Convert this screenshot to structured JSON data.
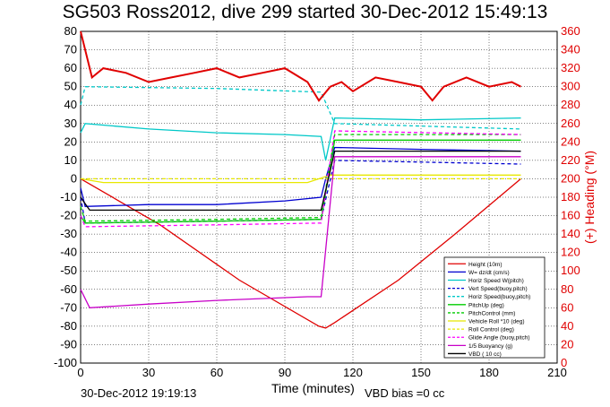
{
  "chart_data": {
    "type": "line",
    "title": "SG503 Ross2012, dive 299 started 30-Dec-2012 15:49:13",
    "xlabel": "Time (minutes)",
    "ylabel_right": "(+) Heading (°M)",
    "xlim": [
      0,
      210
    ],
    "ylim": [
      -100,
      80
    ],
    "ylim_right": [
      0,
      360
    ],
    "x_ticks": [
      "0",
      "30",
      "60",
      "90",
      "120",
      "150",
      "180",
      "210"
    ],
    "y_ticks": [
      "80",
      "70",
      "60",
      "50",
      "40",
      "30",
      "20",
      "10",
      "0",
      "-10",
      "-20",
      "-30",
      "-40",
      "-50",
      "-60",
      "-70",
      "-80",
      "-90",
      "-100"
    ],
    "y_ticks_right": [
      "360",
      "340",
      "320",
      "300",
      "280",
      "260",
      "240",
      "220",
      "200",
      "180",
      "160",
      "140",
      "120",
      "100",
      "80",
      "60",
      "40",
      "20",
      "0"
    ],
    "grid": true,
    "legend_position": "lower-right",
    "footer_date": "30-Dec-2012 19:19:13",
    "footer_vbd": "VBD bias =0 cc",
    "series": [
      {
        "name": "Height (10m)",
        "color": "#e00000",
        "style": "solid",
        "x": [
          0,
          35,
          70,
          105,
          108,
          112,
          140,
          165,
          194
        ],
        "y": [
          0,
          -25,
          -55,
          -80,
          -81,
          -78,
          -55,
          -30,
          0
        ]
      },
      {
        "name": "W= dz/dt (cm/s)",
        "color": "#0000d0",
        "style": "solid",
        "x": [
          0,
          2,
          30,
          60,
          90,
          106,
          108,
          112,
          150,
          194
        ],
        "y": [
          -5,
          -15,
          -14,
          -14,
          -12,
          -10,
          0,
          17,
          16,
          15
        ]
      },
      {
        "name": "Horiz Speed W(pitch)",
        "color": "#00c8c8",
        "style": "solid",
        "x": [
          0,
          2,
          30,
          60,
          90,
          106,
          108,
          112,
          150,
          194
        ],
        "y": [
          25,
          30,
          27,
          25,
          24,
          23,
          10,
          33,
          32,
          33
        ]
      },
      {
        "name": "Vert Speed(buoy,pitch)",
        "color": "#0000d0",
        "style": "dashed",
        "x": [
          0,
          2,
          60,
          106,
          112,
          194
        ],
        "y": [
          -10,
          -24,
          -23,
          -22,
          10,
          8
        ]
      },
      {
        "name": "Horiz Speed(buoy,pitch)",
        "color": "#00c8c8",
        "style": "dashed",
        "x": [
          0,
          2,
          60,
          106,
          112,
          194
        ],
        "y": [
          40,
          50,
          49,
          47,
          30,
          27
        ]
      },
      {
        "name": "PitchUp (deg)",
        "color": "#00cc00",
        "style": "solid",
        "x": [
          0,
          2,
          60,
          106,
          112,
          194
        ],
        "y": [
          -20,
          -24,
          -23,
          -22,
          21,
          21
        ]
      },
      {
        "name": "PitchControl (mm)",
        "color": "#00cc00",
        "style": "dashed",
        "x": [
          0,
          2,
          60,
          106,
          112,
          194
        ],
        "y": [
          -15,
          -23,
          -22,
          -21,
          24,
          24
        ]
      },
      {
        "name": "Vehicle Roll *10 (deg)",
        "color": "#e8e800",
        "style": "solid",
        "x": [
          0,
          10,
          50,
          100,
          110,
          194
        ],
        "y": [
          0,
          -2,
          -2,
          -2,
          2,
          2
        ]
      },
      {
        "name": "Roll Control (deg)",
        "color": "#e8e800",
        "style": "dashed",
        "x": [
          0,
          194
        ],
        "y": [
          0,
          0
        ]
      },
      {
        "name": "Glide Angle (buoy,pitch)",
        "color": "#ff00ff",
        "style": "dashed",
        "x": [
          0,
          2,
          60,
          106,
          112,
          194
        ],
        "y": [
          -20,
          -26,
          -25,
          -24,
          26,
          24
        ]
      },
      {
        "name": "1/5 Buoyancy (g)",
        "color": "#c800c8",
        "style": "solid",
        "x": [
          0,
          4,
          30,
          60,
          100,
          106,
          112,
          194
        ],
        "y": [
          -60,
          -70,
          -68,
          -66,
          -64,
          -64,
          12,
          12
        ]
      },
      {
        "name": "VBD ( 10 cc)",
        "color": "#000000",
        "style": "solid",
        "x": [
          0,
          4,
          106,
          112,
          194
        ],
        "y": [
          -10,
          -17,
          -17,
          15,
          15
        ]
      }
    ],
    "heading_series": {
      "name": "Heading",
      "color": "#e00000",
      "axis": "right",
      "x": [
        0,
        2,
        5,
        10,
        20,
        30,
        40,
        50,
        60,
        70,
        80,
        90,
        100,
        105,
        110,
        115,
        120,
        130,
        140,
        150,
        155,
        160,
        170,
        180,
        190,
        194
      ],
      "y": [
        360,
        340,
        310,
        320,
        315,
        305,
        310,
        315,
        320,
        310,
        315,
        320,
        305,
        285,
        300,
        305,
        295,
        310,
        305,
        300,
        285,
        300,
        310,
        300,
        305,
        300
      ]
    }
  }
}
